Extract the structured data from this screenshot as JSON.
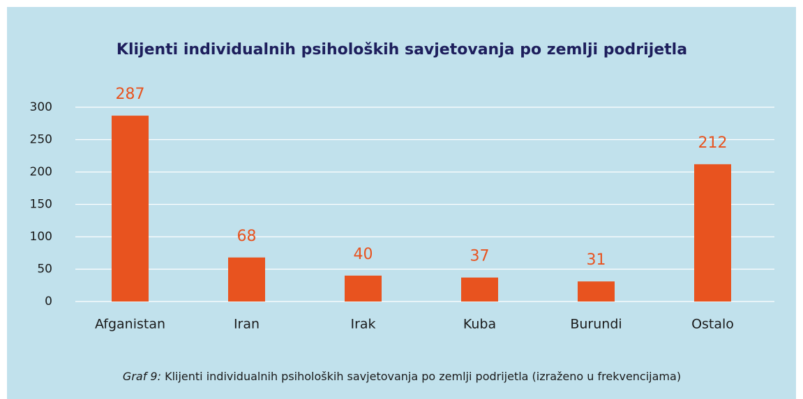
{
  "chart_data": {
    "type": "bar",
    "title": "Klijenti individualnih psiholoških savjetovanja po zemlji podrijetla",
    "categories": [
      "Afganistan",
      "Iran",
      "Irak",
      "Kuba",
      "Burundi",
      "Ostalo"
    ],
    "values": [
      287,
      68,
      40,
      37,
      31,
      212
    ],
    "color": "#e8531f",
    "ylim": [
      0,
      300
    ],
    "yticks": [
      0,
      50,
      100,
      150,
      200,
      250,
      300
    ],
    "grid": true,
    "caption_prefix": "Graf 9:",
    "caption": " Klijenti individualnih psiholoških savjetovanja po zemlji podrijetla (izraženo u frekvencijama)"
  }
}
